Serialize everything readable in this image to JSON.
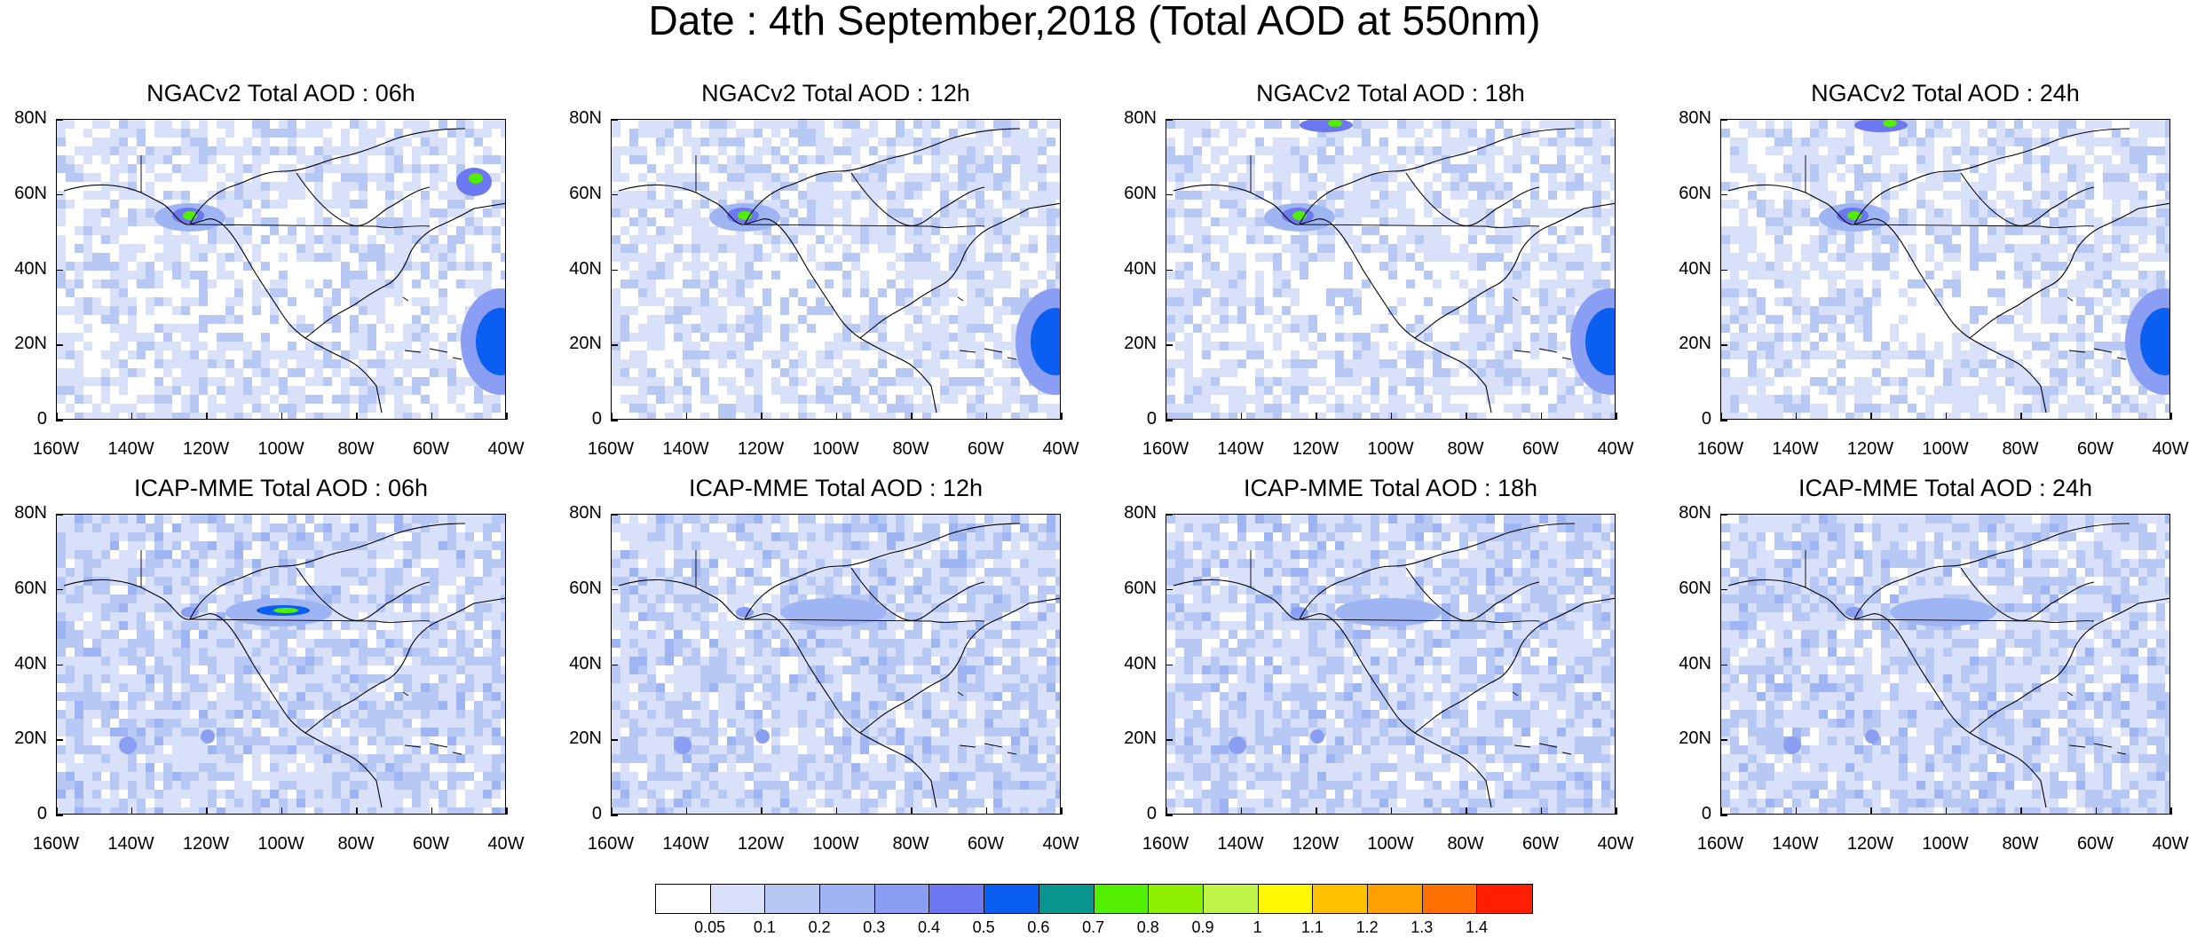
{
  "title": "Date : 4th September,2018 (Total AOD at 550nm)",
  "panels": [
    {
      "title": "NGACv2 Total AOD : 06h",
      "model": "NGACv2",
      "hour": "06h"
    },
    {
      "title": "NGACv2 Total AOD : 12h",
      "model": "NGACv2",
      "hour": "12h"
    },
    {
      "title": "NGACv2 Total AOD : 18h",
      "model": "NGACv2",
      "hour": "18h"
    },
    {
      "title": "NGACv2 Total AOD : 24h",
      "model": "NGACv2",
      "hour": "24h"
    },
    {
      "title": "ICAP-MME Total AOD : 06h",
      "model": "ICAP-MME",
      "hour": "06h"
    },
    {
      "title": "ICAP-MME Total AOD : 12h",
      "model": "ICAP-MME",
      "hour": "12h"
    },
    {
      "title": "ICAP-MME Total AOD : 18h",
      "model": "ICAP-MME",
      "hour": "18h"
    },
    {
      "title": "ICAP-MME Total AOD : 24h",
      "model": "ICAP-MME",
      "hour": "24h"
    }
  ],
  "axes": {
    "lat_labels": [
      "80N",
      "60N",
      "40N",
      "20N",
      "0"
    ],
    "lon_labels": [
      "160W",
      "140W",
      "120W",
      "100W",
      "80W",
      "60W",
      "40W"
    ]
  },
  "colorbar": {
    "levels": [
      "0.05",
      "0.1",
      "0.2",
      "0.3",
      "0.4",
      "0.5",
      "0.6",
      "0.7",
      "0.8",
      "0.9",
      "1",
      "1.1",
      "1.2",
      "1.3",
      "1.4"
    ],
    "colors": [
      "#ffffff",
      "#d9e0fa",
      "#b8c8f5",
      "#9fb5f3",
      "#8a9ef3",
      "#6c78f0",
      "#0a5ff0",
      "#09958f",
      "#52f000",
      "#8ef000",
      "#bff546",
      "#fff800",
      "#ffc000",
      "#ffa000",
      "#ff7000",
      "#ff1e00"
    ]
  },
  "colors": {
    "background_low": "#ffffff",
    "background_high": "#d9e0fa",
    "plume": "#8a9ef3",
    "hotspot": "#0a5ff0",
    "fire": "#52f000"
  }
}
